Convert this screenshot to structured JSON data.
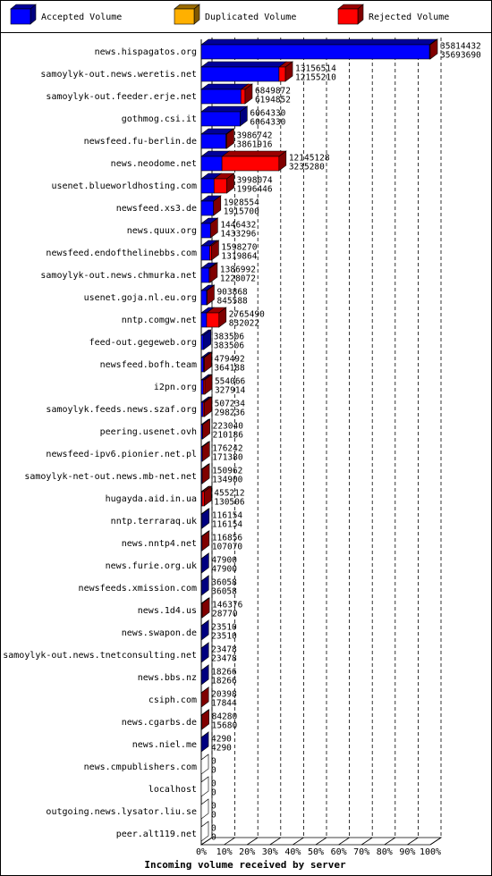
{
  "chart_data": {
    "type": "bar3d",
    "x_label": "Incoming volume received by server",
    "legend": [
      {
        "name": "Accepted Volume",
        "color": "#0000ff"
      },
      {
        "name": "Duplicated Volume",
        "color": "#ffb000"
      },
      {
        "name": "Rejected Volume",
        "color": "#ff0000"
      }
    ],
    "categories": [
      "news.hispagatos.org",
      "samoylyk-out.news.weretis.net",
      "samoylyk-out.feeder.erje.net",
      "gothmog.csi.it",
      "newsfeed.fu-berlin.de",
      "news.neodome.net",
      "usenet.blueworldhosting.com",
      "newsfeed.xs3.de",
      "news.quux.org",
      "newsfeed.endofthelinebbs.com",
      "samoylyk-out.news.chmurka.net",
      "usenet.goja.nl.eu.org",
      "nntp.comgw.net",
      "feed-out.gegeweb.org",
      "newsfeed.bofh.team",
      "i2pn.org",
      "samoylyk.feeds.news.szaf.org",
      "peering.usenet.ovh",
      "newsfeed-ipv6.pionier.net.pl",
      "samoylyk-net-out.news.mb-net.net",
      "hugayda.aid.in.ua",
      "nntp.terraraq.uk",
      "news.nntp4.net",
      "news.furie.org.uk",
      "newsfeeds.xmission.com",
      "news.1d4.us",
      "news.swapon.de",
      "samoylyk-out.news.tnetconsulting.net",
      "news.bbs.nz",
      "csiph.com",
      "news.cgarbs.de",
      "news.niel.me",
      "news.cmpublishers.com",
      "localhost",
      "outgoing.news.lysator.liu.se",
      "peer.alt119.net"
    ],
    "offered": [
      35814432,
      13156514,
      6849872,
      6064330,
      3986742,
      12145128,
      3998074,
      1928554,
      1446432,
      1598270,
      1386992,
      903868,
      2765490,
      383506,
      479492,
      554066,
      507234,
      223040,
      176242,
      150962,
      455212,
      116154,
      116856,
      47900,
      36058,
      146376,
      23510,
      23478,
      18266,
      20398,
      84280,
      4290,
      0,
      0,
      0,
      0
    ],
    "accepted": [
      35693690,
      12155210,
      6194852,
      6064330,
      3861916,
      3235280,
      1996446,
      1915700,
      1433296,
      1319864,
      1228072,
      845588,
      832022,
      383506,
      364188,
      327914,
      298236,
      210186,
      171380,
      134900,
      130506,
      116154,
      107070,
      47900,
      36058,
      28770,
      23510,
      23478,
      18266,
      17844,
      15680,
      4290,
      0,
      0,
      0,
      0
    ],
    "xlim": [
      0,
      35814432
    ],
    "xticks": [
      {
        "value": 0,
        "label": "0%"
      },
      {
        "value": 3581443.2,
        "label": "10%"
      },
      {
        "value": 7162886.4,
        "label": "20%"
      },
      {
        "value": 10744329.6,
        "label": "30%"
      },
      {
        "value": 14325772.8,
        "label": "40%"
      },
      {
        "value": 17907216,
        "label": "50%"
      },
      {
        "value": 21488659.2,
        "label": "60%"
      },
      {
        "value": 25070102.4,
        "label": "70%"
      },
      {
        "value": 28651545.6,
        "label": "80%"
      },
      {
        "value": 32232988.8,
        "label": "90%"
      },
      {
        "value": 35814432,
        "label": "100%"
      }
    ],
    "grid": true
  }
}
